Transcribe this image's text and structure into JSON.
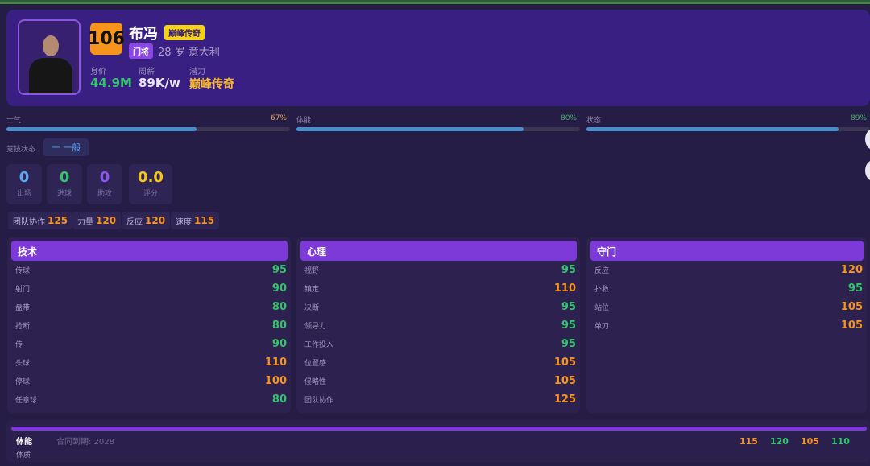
{
  "player": {
    "overall": "106",
    "name": "布冯",
    "tier_tag": "巅峰传奇",
    "position": "门将",
    "age": "28 岁",
    "nationality": "意大利",
    "value_label": "身价",
    "value": "44.9M",
    "wage_label": "周薪",
    "wage": "89K/w",
    "potential_label": "潜力",
    "potential": "巅峰传奇"
  },
  "bars": [
    {
      "label": "士气",
      "pct": "67%",
      "value": 67,
      "color": "#e6a23c"
    },
    {
      "label": "体能",
      "pct": "80%",
      "value": 80,
      "color": "#3fae5f"
    },
    {
      "label": "状态",
      "pct": "89%",
      "value": 89,
      "color": "#3fae5f"
    }
  ],
  "form": {
    "label": "竞技状态",
    "value": "一 一般"
  },
  "stats": [
    {
      "value": "0",
      "label": "出场",
      "color": "#5aa8f0"
    },
    {
      "value": "0",
      "label": "进球",
      "color": "#33c36a"
    },
    {
      "value": "0",
      "label": "助攻",
      "color": "#8b55f0"
    },
    {
      "value": "0.0",
      "label": "评分",
      "color": "#f5c518"
    }
  ],
  "highlights": [
    {
      "label": "团队协作",
      "value": "125"
    },
    {
      "label": "力量",
      "value": "120"
    },
    {
      "label": "反应",
      "value": "120"
    },
    {
      "label": "速度",
      "value": "115"
    }
  ],
  "panels": [
    {
      "title": "技术",
      "rows": [
        {
          "l": "传球",
          "v": "95"
        },
        {
          "l": "射门",
          "v": "90"
        },
        {
          "l": "盘带",
          "v": "80"
        },
        {
          "l": "抢断",
          "v": "80"
        },
        {
          "l": "传",
          "v": "90"
        },
        {
          "l": "头球",
          "v": "110"
        },
        {
          "l": "停球",
          "v": "100"
        },
        {
          "l": "任意球",
          "v": "80"
        }
      ]
    },
    {
      "title": "心理",
      "rows": [
        {
          "l": "视野",
          "v": "95"
        },
        {
          "l": "镇定",
          "v": "110"
        },
        {
          "l": "决断",
          "v": "95"
        },
        {
          "l": "领导力",
          "v": "95"
        },
        {
          "l": "工作投入",
          "v": "95"
        },
        {
          "l": "位置感",
          "v": "105"
        },
        {
          "l": "侵略性",
          "v": "105"
        },
        {
          "l": "团队协作",
          "v": "125"
        }
      ]
    },
    {
      "title": "守门",
      "rows": [
        {
          "l": "反应",
          "v": "120"
        },
        {
          "l": "扑救",
          "v": "95"
        },
        {
          "l": "站位",
          "v": "105"
        },
        {
          "l": "单刀",
          "v": "105"
        }
      ]
    }
  ],
  "bottom": {
    "title": "体能",
    "contract": "合同到期: 2028",
    "row": "体质",
    "values": [
      "115",
      "120",
      "105",
      "110"
    ]
  },
  "colors": {
    "green": "#33c36a",
    "orange": "#f7941d"
  }
}
